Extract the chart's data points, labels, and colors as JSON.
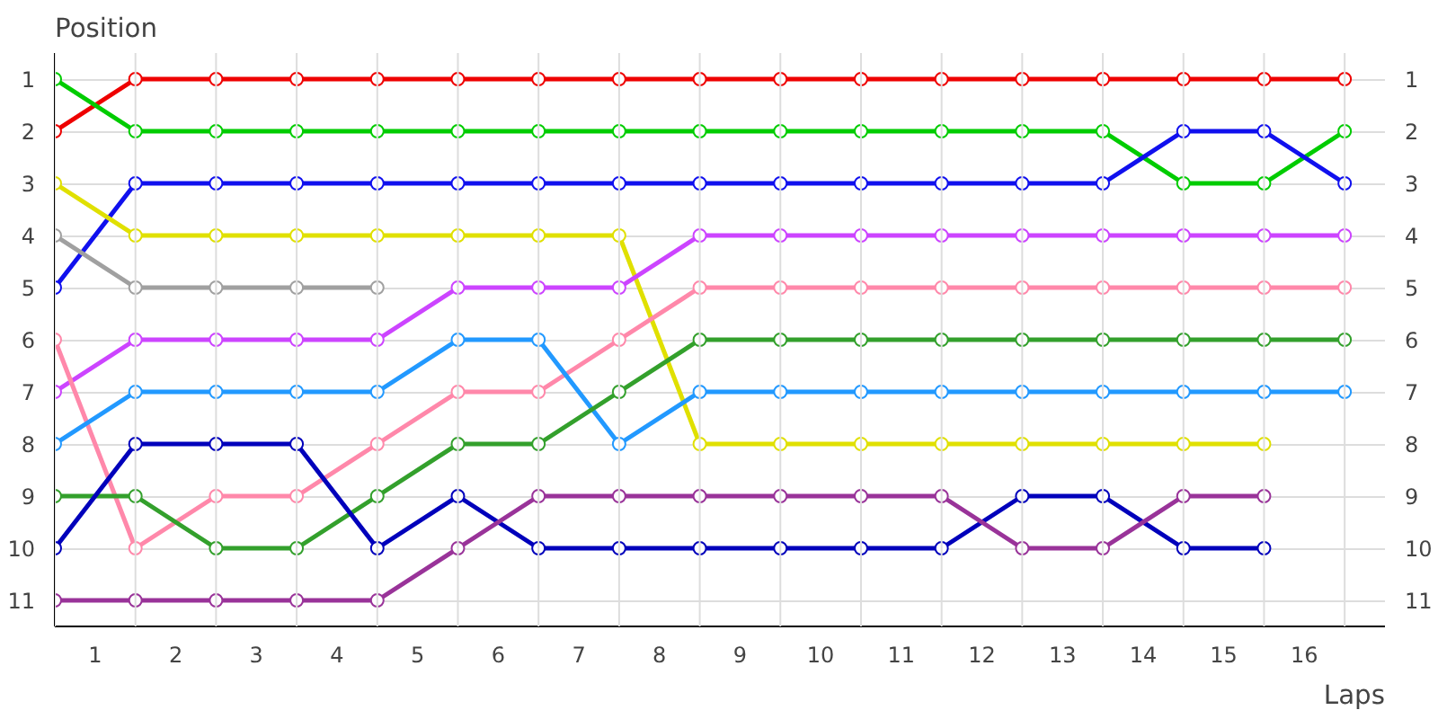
{
  "chart_data": {
    "type": "line",
    "ylabel": "Position",
    "xlabel": "Laps",
    "marker": "circle",
    "grid": true,
    "x": [
      0,
      1,
      2,
      3,
      4,
      5,
      6,
      7,
      8,
      9,
      10,
      11,
      12,
      13,
      14,
      15,
      16
    ],
    "xlim": [
      0,
      16.5
    ],
    "xticks": [
      {
        "value": 0,
        "label": null
      },
      {
        "value": 0.5,
        "label": "1"
      },
      {
        "value": 1,
        "label": null
      },
      {
        "value": 1.5,
        "label": "2"
      },
      {
        "value": 2,
        "label": null
      },
      {
        "value": 2.5,
        "label": "3"
      },
      {
        "value": 3,
        "label": null
      },
      {
        "value": 3.5,
        "label": "4"
      },
      {
        "value": 4,
        "label": null
      },
      {
        "value": 4.5,
        "label": "5"
      },
      {
        "value": 5,
        "label": null
      },
      {
        "value": 5.5,
        "label": "6"
      },
      {
        "value": 6,
        "label": null
      },
      {
        "value": 6.5,
        "label": "7"
      },
      {
        "value": 7,
        "label": null
      },
      {
        "value": 7.5,
        "label": "8"
      },
      {
        "value": 8,
        "label": null
      },
      {
        "value": 8.5,
        "label": "9"
      },
      {
        "value": 9,
        "label": null
      },
      {
        "value": 9.5,
        "label": "10"
      },
      {
        "value": 10,
        "label": null
      },
      {
        "value": 10.5,
        "label": "11"
      },
      {
        "value": 11,
        "label": null
      },
      {
        "value": 11.5,
        "label": "12"
      },
      {
        "value": 12,
        "label": null
      },
      {
        "value": 12.5,
        "label": "13"
      },
      {
        "value": 13,
        "label": null
      },
      {
        "value": 13.5,
        "label": "14"
      },
      {
        "value": 14,
        "label": null
      },
      {
        "value": 14.5,
        "label": "15"
      },
      {
        "value": 15,
        "label": null
      },
      {
        "value": 15.5,
        "label": "16"
      },
      {
        "value": 16,
        "label": null
      }
    ],
    "ylim": [
      11.5,
      0.5
    ],
    "yticks": [
      1,
      2,
      3,
      4,
      5,
      6,
      7,
      8,
      9,
      10,
      11
    ],
    "y2lim": [
      11.5,
      0.5
    ],
    "y2ticks": [
      1,
      2,
      3,
      4,
      5,
      6,
      7,
      8,
      9,
      10,
      11
    ],
    "series": [
      {
        "color": "#ee0000",
        "values": [
          2,
          1,
          1,
          1,
          1,
          1,
          1,
          1,
          1,
          1,
          1,
          1,
          1,
          1,
          1,
          1,
          1
        ]
      },
      {
        "color": "#00cc00",
        "values": [
          1,
          2,
          2,
          2,
          2,
          2,
          2,
          2,
          2,
          2,
          2,
          2,
          2,
          2,
          3,
          3,
          2
        ]
      },
      {
        "color": "#1010ee",
        "values": [
          5,
          3,
          3,
          3,
          3,
          3,
          3,
          3,
          3,
          3,
          3,
          3,
          3,
          3,
          2,
          2,
          3
        ]
      },
      {
        "color": "#e0e000",
        "values": [
          3,
          4,
          4,
          4,
          4,
          4,
          4,
          4,
          8,
          8,
          8,
          8,
          8,
          8,
          8,
          8,
          null
        ]
      },
      {
        "color": "#a0a0a0",
        "values": [
          4,
          5,
          5,
          5,
          5,
          null,
          null,
          null,
          null,
          null,
          null,
          null,
          null,
          null,
          null,
          null,
          null
        ]
      },
      {
        "color": "#cc44ff",
        "values": [
          7,
          6,
          6,
          6,
          6,
          5,
          5,
          5,
          4,
          4,
          4,
          4,
          4,
          4,
          4,
          4,
          4
        ]
      },
      {
        "color": "#ff88aa",
        "values": [
          6,
          10,
          9,
          9,
          8,
          7,
          7,
          6,
          5,
          5,
          5,
          5,
          5,
          5,
          5,
          5,
          5
        ]
      },
      {
        "color": "#2299ff",
        "values": [
          8,
          7,
          7,
          7,
          7,
          6,
          6,
          8,
          7,
          7,
          7,
          7,
          7,
          7,
          7,
          7,
          7
        ]
      },
      {
        "color": "#33a02c",
        "values": [
          9,
          9,
          10,
          10,
          9,
          8,
          8,
          7,
          6,
          6,
          6,
          6,
          6,
          6,
          6,
          6,
          6
        ]
      },
      {
        "color": "#0000bb",
        "values": [
          10,
          8,
          8,
          8,
          10,
          9,
          10,
          10,
          10,
          10,
          10,
          10,
          9,
          9,
          10,
          10,
          null
        ]
      },
      {
        "color": "#993399",
        "values": [
          11,
          11,
          11,
          11,
          11,
          10,
          9,
          9,
          9,
          9,
          9,
          9,
          10,
          10,
          9,
          9,
          null
        ]
      }
    ]
  }
}
